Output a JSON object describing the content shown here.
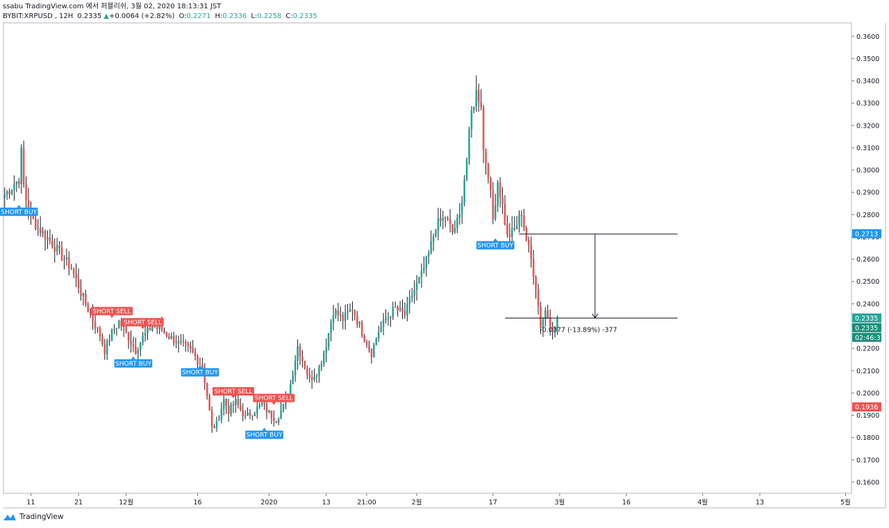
{
  "header": {
    "publish_line": "ssabu TradingView.com 에서 퍼블리쉬, 3월 02, 2020 18:13:31 JST",
    "symbol": "BYBIT:XRPUSD",
    "interval": "12H",
    "last": "0.2335",
    "change": "+0.0064 (+2.82%)",
    "o_label": "O:",
    "o": "0.2271",
    "h_label": "H:",
    "h": "0.2336",
    "l_label": "L:",
    "l": "0.2258",
    "c_label": "C:",
    "c": "0.2335"
  },
  "logo": {
    "text": "TradingView",
    "icon": "tradingview-logo-icon"
  },
  "colors": {
    "up": "#26a69a",
    "down": "#ef5350",
    "wick": "#131722",
    "buy_label": "#2196f3",
    "sell_label": "#ef5350",
    "price_tag_blue": "#2196f3",
    "price_tag_green": "#26a69a",
    "price_tag_red": "#ef5350",
    "timer_tag": "#1e8c7a"
  },
  "chart_data": {
    "type": "candlestick",
    "title": "",
    "xlabel": "",
    "ylabel": "",
    "ylim": [
      0.155,
      0.366
    ],
    "y_ticks": [
      "0.1600",
      "0.1700",
      "0.1800",
      "0.1900",
      "0.2000",
      "0.2100",
      "0.2200",
      "0.2300",
      "0.2400",
      "0.2500",
      "0.2600",
      "0.2700",
      "0.2800",
      "0.2900",
      "0.3000",
      "0.3100",
      "0.3200",
      "0.3300",
      "0.3400",
      "0.3500",
      "0.3600"
    ],
    "x_ticks": [
      {
        "label": "11",
        "bar": 11
      },
      {
        "label": "21",
        "bar": 31
      },
      {
        "label": "12월",
        "bar": 51
      },
      {
        "label": "16",
        "bar": 81
      },
      {
        "label": "2020",
        "bar": 111
      },
      {
        "label": "13",
        "bar": 135
      },
      {
        "label": "21:00",
        "bar": 152
      },
      {
        "label": "2월",
        "bar": 173
      },
      {
        "label": "17",
        "bar": 205
      },
      {
        "label": "3월",
        "bar": 233
      },
      {
        "label": "16",
        "bar": 261
      },
      {
        "label": "4월",
        "bar": 293
      },
      {
        "label": "13",
        "bar": 317
      },
      {
        "label": "5월",
        "bar": 353
      }
    ],
    "bars_total": 356,
    "price_path": [
      [
        0,
        0.289
      ],
      [
        6,
        0.296
      ],
      [
        7,
        0.308
      ],
      [
        8,
        0.293
      ],
      [
        10,
        0.281
      ],
      [
        14,
        0.274
      ],
      [
        20,
        0.267
      ],
      [
        28,
        0.256
      ],
      [
        32,
        0.245
      ],
      [
        36,
        0.235
      ],
      [
        40,
        0.226
      ],
      [
        42,
        0.219
      ],
      [
        45,
        0.227
      ],
      [
        48,
        0.232
      ],
      [
        52,
        0.225
      ],
      [
        55,
        0.219
      ],
      [
        58,
        0.225
      ],
      [
        62,
        0.23
      ],
      [
        66,
        0.228
      ],
      [
        72,
        0.223
      ],
      [
        78,
        0.219
      ],
      [
        83,
        0.212
      ],
      [
        85,
        0.199
      ],
      [
        87,
        0.184
      ],
      [
        89,
        0.186
      ],
      [
        92,
        0.197
      ],
      [
        94,
        0.192
      ],
      [
        97,
        0.196
      ],
      [
        101,
        0.189
      ],
      [
        105,
        0.192
      ],
      [
        108,
        0.195
      ],
      [
        111,
        0.191
      ],
      [
        114,
        0.188
      ],
      [
        117,
        0.194
      ],
      [
        120,
        0.204
      ],
      [
        123,
        0.221
      ],
      [
        125,
        0.215
      ],
      [
        128,
        0.206
      ],
      [
        132,
        0.211
      ],
      [
        135,
        0.222
      ],
      [
        138,
        0.237
      ],
      [
        142,
        0.233
      ],
      [
        146,
        0.238
      ],
      [
        149,
        0.23
      ],
      [
        151,
        0.225
      ],
      [
        154,
        0.218
      ],
      [
        157,
        0.228
      ],
      [
        160,
        0.233
      ],
      [
        164,
        0.238
      ],
      [
        168,
        0.235
      ],
      [
        171,
        0.244
      ],
      [
        175,
        0.253
      ],
      [
        178,
        0.262
      ],
      [
        181,
        0.275
      ],
      [
        185,
        0.279
      ],
      [
        188,
        0.272
      ],
      [
        191,
        0.279
      ],
      [
        194,
        0.305
      ],
      [
        196,
        0.326
      ],
      [
        198,
        0.335
      ],
      [
        200,
        0.33
      ],
      [
        201,
        0.309
      ],
      [
        203,
        0.299
      ],
      [
        205,
        0.278
      ],
      [
        207,
        0.295
      ],
      [
        209,
        0.284
      ],
      [
        211,
        0.27
      ],
      [
        214,
        0.273
      ],
      [
        217,
        0.281
      ],
      [
        219,
        0.269
      ],
      [
        221,
        0.26
      ],
      [
        223,
        0.248
      ],
      [
        225,
        0.23
      ],
      [
        227,
        0.237
      ],
      [
        229,
        0.232
      ],
      [
        231,
        0.2271
      ],
      [
        232,
        0.2335
      ]
    ],
    "last_price": 0.2335,
    "price_tags": [
      {
        "label": "0.2713",
        "price": 0.2713,
        "color": "#2196f3"
      },
      {
        "label": "0.2335",
        "price": 0.2335,
        "color": "#26a69a"
      },
      {
        "label": "0.2335",
        "price": 0.2335,
        "color": "#1e8c7a",
        "offset": 1
      },
      {
        "label": "02:46:31",
        "price": 0.2335,
        "color": "#1e8c7a",
        "offset": 2
      },
      {
        "label": "0.1936",
        "price": 0.1936,
        "color": "#ef5350"
      }
    ],
    "signals": [
      {
        "text": "SHORT BUY",
        "bar": 6,
        "price": 0.285,
        "side": "buy",
        "pos": "below"
      },
      {
        "text": "SHORT SELL",
        "bar": 45,
        "price": 0.233,
        "side": "sell",
        "pos": "above"
      },
      {
        "text": "SHORT SELL",
        "bar": 58,
        "price": 0.228,
        "side": "sell",
        "pos": "above"
      },
      {
        "text": "SHORT BUY",
        "bar": 54,
        "price": 0.217,
        "side": "buy",
        "pos": "below"
      },
      {
        "text": "SHORT BUY",
        "bar": 82,
        "price": 0.213,
        "side": "buy",
        "pos": "below"
      },
      {
        "text": "SHORT SELL",
        "bar": 96,
        "price": 0.197,
        "side": "sell",
        "pos": "above"
      },
      {
        "text": "SHORT SELL",
        "bar": 113,
        "price": 0.194,
        "side": "sell",
        "pos": "above"
      },
      {
        "text": "SHORT BUY",
        "bar": 109,
        "price": 0.185,
        "side": "buy",
        "pos": "below"
      },
      {
        "text": "SHORT BUY",
        "bar": 206,
        "price": 0.27,
        "side": "buy",
        "pos": "below"
      }
    ],
    "measure": {
      "from_price": 0.2713,
      "to_price": 0.2336,
      "start_bar": 213,
      "end_bar": 265,
      "text": "-0.0377 (-13.89%) -377"
    }
  }
}
